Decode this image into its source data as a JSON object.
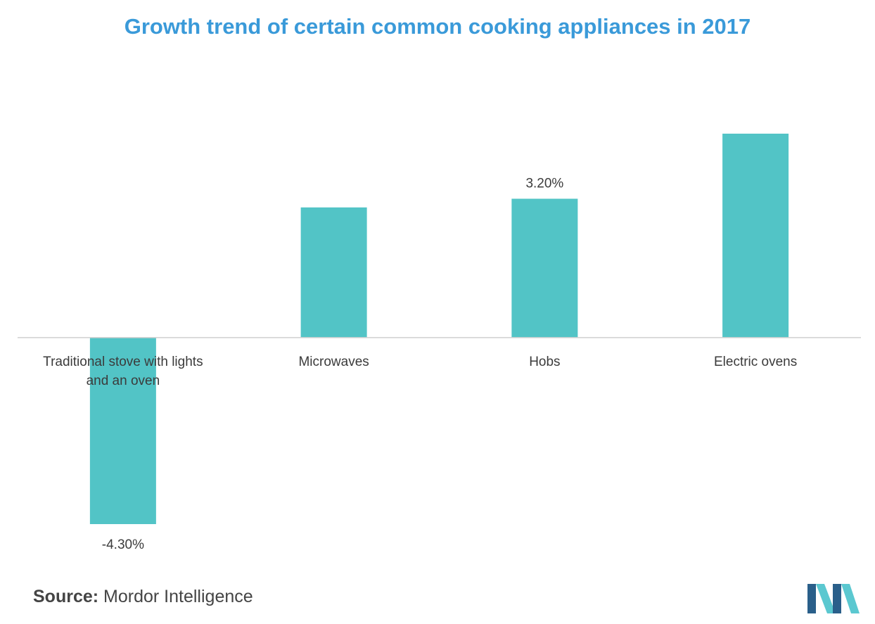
{
  "chart_data": {
    "type": "bar",
    "title": "Growth trend of certain common cooking appliances in 2017",
    "categories": [
      [
        "Traditional stove with lights",
        "and an oven"
      ],
      [
        "Microwaves"
      ],
      [
        "Hobs"
      ],
      [
        "Electric ovens"
      ]
    ],
    "values": [
      -4.3,
      3.0,
      3.2,
      4.7
    ],
    "data_labels": [
      "-4.30%",
      "",
      "3.20%",
      ""
    ],
    "ylim": [
      -4.3,
      4.7
    ],
    "xlabel": "",
    "ylabel": "",
    "grid": false,
    "bar_color": "#52c4c6"
  },
  "source": {
    "label": "Source:",
    "text": "Mordor Intelligence"
  },
  "colors": {
    "title": "#3a9ad9",
    "bar": "#52c4c6",
    "axis": "#d0d0d0",
    "logo_dark": "#2a5f8a",
    "logo_light": "#5bc8d0"
  }
}
